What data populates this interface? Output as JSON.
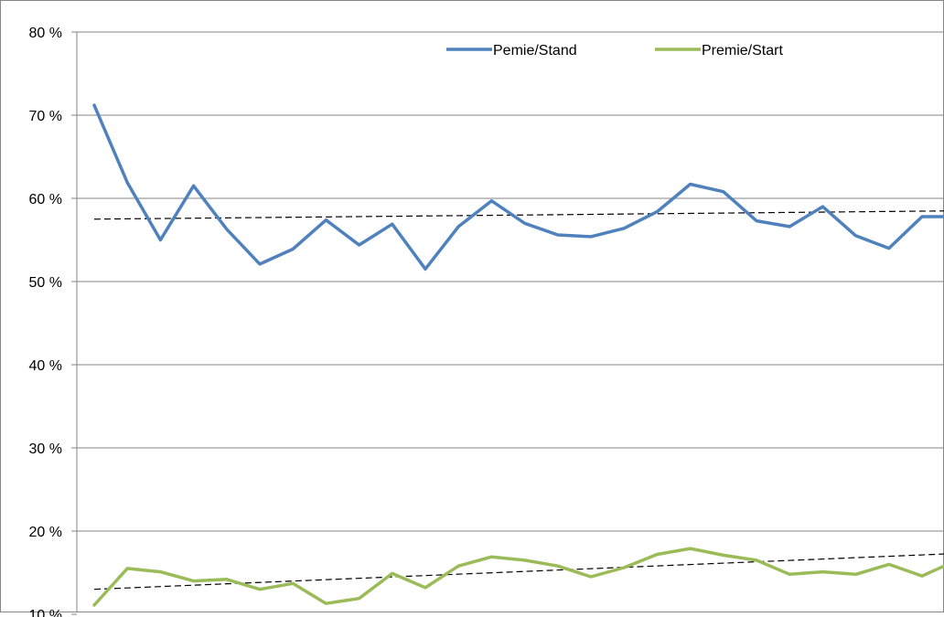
{
  "chart_data": {
    "type": "line",
    "title": "",
    "xlabel": "",
    "ylabel": "",
    "ylim": [
      10,
      80
    ],
    "y_ticks": [
      "10 %",
      "20 %",
      "30 %",
      "40 %",
      "50 %",
      "60 %",
      "70 %",
      "80 %"
    ],
    "grid": "horizontal",
    "legend_position": "top-center",
    "series": [
      {
        "name": "Pemie/Stand",
        "color": "#4f81bd",
        "values": [
          71.2,
          61.9,
          55.0,
          61.5,
          56.3,
          52.1,
          53.9,
          57.4,
          54.4,
          56.9,
          51.5,
          56.6,
          59.7,
          57.0,
          55.6,
          55.4,
          56.4,
          58.4,
          61.7,
          60.8,
          57.3,
          56.6,
          59.0,
          55.5,
          54.0,
          57.8,
          57.8
        ]
      },
      {
        "name": "Premie/Start",
        "color": "#9bbb59",
        "values": [
          11.1,
          15.5,
          15.1,
          14.0,
          14.2,
          13.0,
          13.7,
          11.3,
          11.9,
          14.9,
          13.2,
          15.8,
          16.9,
          16.5,
          15.8,
          14.5,
          15.6,
          17.2,
          17.9,
          17.1,
          16.5,
          14.8,
          15.1,
          14.8,
          16.0,
          14.6,
          16.4
        ]
      }
    ],
    "trendlines": [
      {
        "color": "#000000",
        "style": "dashed",
        "start": 57.5,
        "end": 58.5
      },
      {
        "color": "#000000",
        "style": "dashed",
        "start": 13.0,
        "end": 17.3
      }
    ]
  }
}
